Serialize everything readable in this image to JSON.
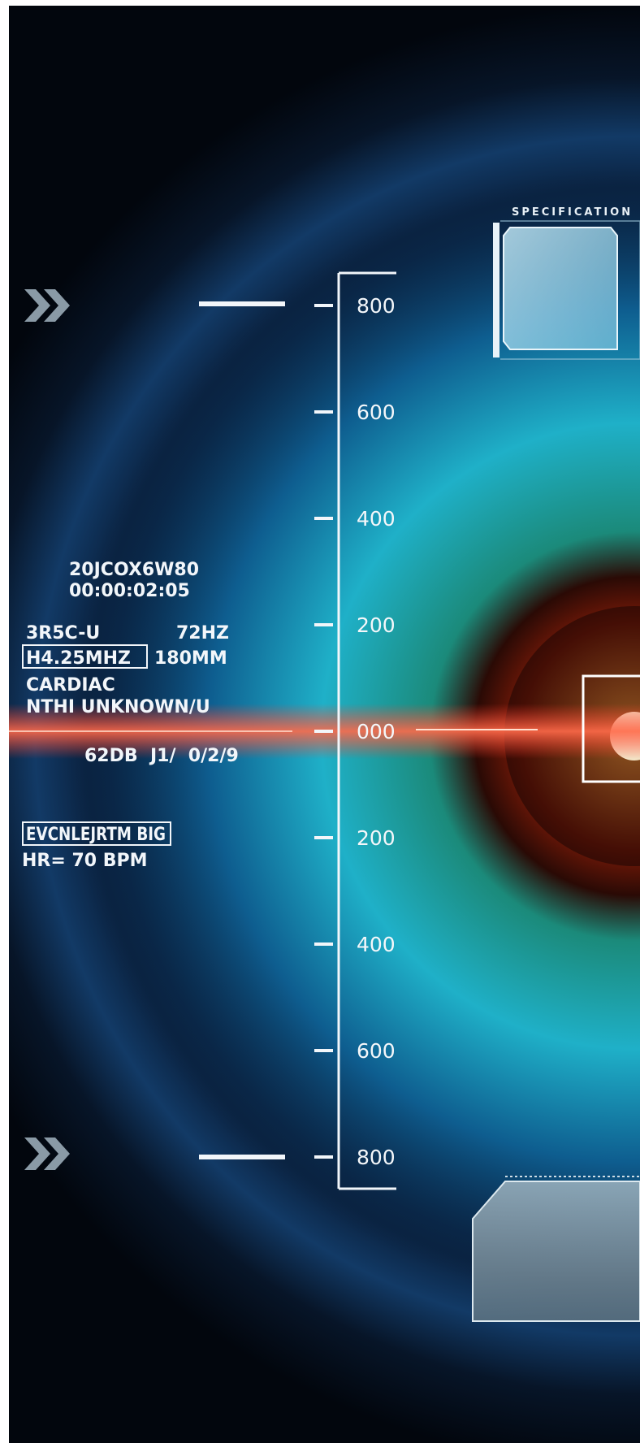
{
  "hud_text": {
    "code": "20JCOX6W80",
    "timecode": "00:00:02:05",
    "probe": "3R5C-U",
    "frame_rate": "72HZ",
    "frequency": "H4.25MHZ",
    "depth": "180MM",
    "mode": "CARDIAC",
    "patient": "NTHI UNKNOWN/U",
    "gain": "62DB  J1/  0/2/9",
    "scrambled": "EVCNLEJRTM BIG",
    "heart_rate": "HR= 70 BPM"
  },
  "ruler": {
    "labels": [
      "800",
      "600",
      "400",
      "200",
      "000",
      "200",
      "400",
      "600",
      "800"
    ]
  },
  "panel": {
    "title": "SPECIFICATION"
  }
}
